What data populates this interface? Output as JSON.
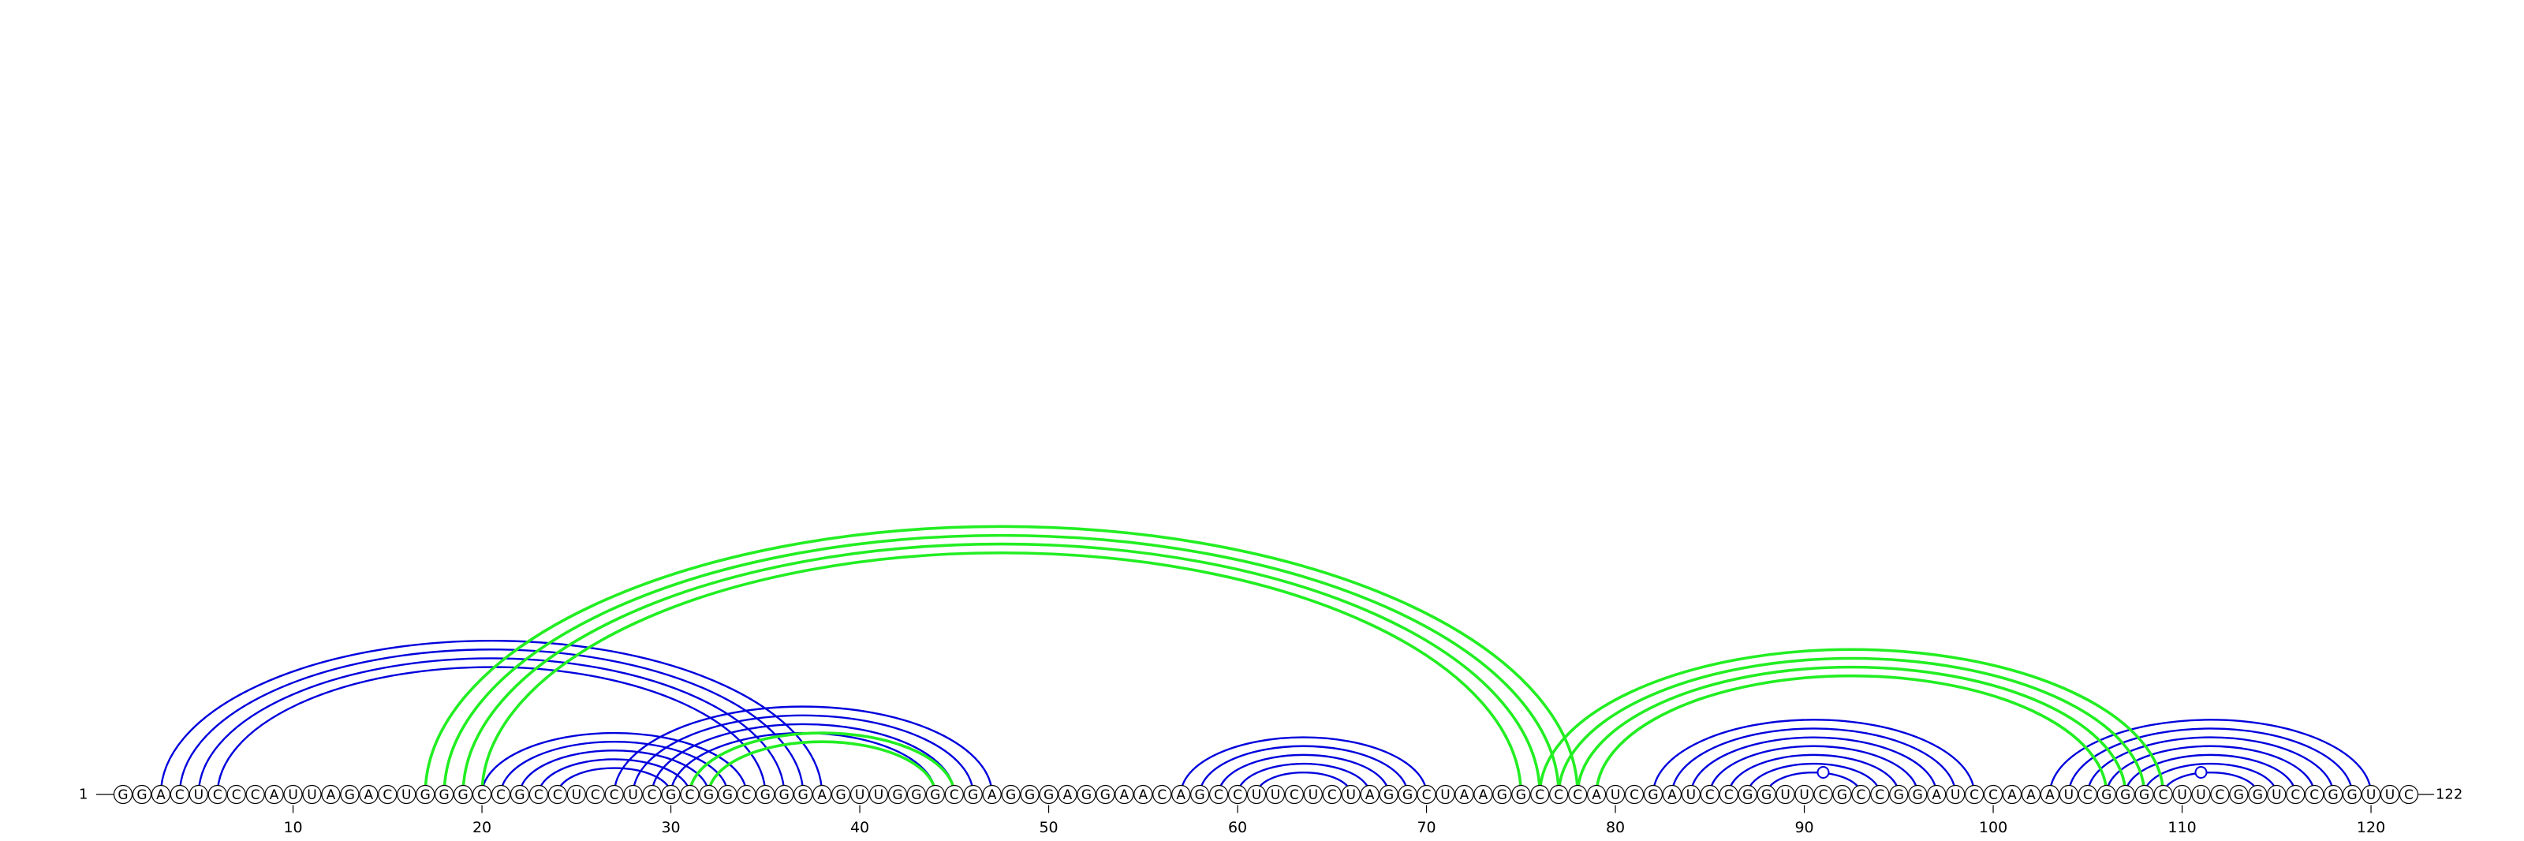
{
  "sequence": "GGACUCCCAUUAGACUGGGCCGCCUCCUCGCGGCGGGAGUUGGGCGAGGGAGGAACAGCCUUCUCUAGGCUAAGGCCCAUCGAUCCGGUUCGCCGGAUCCAAAUCGGGCUUCGGUCCGGUUC",
  "start_label": "1",
  "end_label": "122",
  "tick_labels": [
    "10",
    "20",
    "30",
    "40",
    "50",
    "60",
    "70",
    "80",
    "90",
    "100",
    "110",
    "120"
  ],
  "colors": {
    "structure_a": "#0000dd",
    "structure_b": "#22ee22",
    "text": "#000000"
  },
  "chart_data": {
    "type": "arc-diagram",
    "sequence_length": 122,
    "xlim": [
      1,
      122
    ],
    "ticks": [
      10,
      20,
      30,
      40,
      50,
      60,
      70,
      80,
      90,
      100,
      110,
      120
    ],
    "structures": [
      {
        "color": "#0000dd",
        "pairs": [
          [
            3,
            38
          ],
          [
            4,
            37
          ],
          [
            5,
            36
          ],
          [
            6,
            35
          ],
          [
            20,
            34
          ],
          [
            21,
            33
          ],
          [
            22,
            32
          ],
          [
            23,
            31
          ],
          [
            24,
            30
          ],
          [
            27,
            47
          ],
          [
            28,
            46
          ],
          [
            29,
            45
          ],
          [
            30,
            44
          ],
          [
            57,
            70
          ],
          [
            58,
            69
          ],
          [
            59,
            68
          ],
          [
            60,
            67
          ],
          [
            61,
            66
          ],
          [
            82,
            99
          ],
          [
            83,
            98
          ],
          [
            84,
            97
          ],
          [
            85,
            96
          ],
          [
            86,
            95
          ],
          [
            87,
            94
          ],
          [
            88,
            93
          ],
          [
            103,
            120
          ],
          [
            104,
            119
          ],
          [
            105,
            118
          ],
          [
            106,
            117
          ],
          [
            107,
            116
          ],
          [
            108,
            115
          ],
          [
            109,
            114
          ]
        ]
      },
      {
        "color": "#22ee22",
        "pairs": [
          [
            17,
            78
          ],
          [
            18,
            77
          ],
          [
            19,
            76
          ],
          [
            20,
            75
          ],
          [
            31,
            45
          ],
          [
            32,
            44
          ],
          [
            76,
            109
          ],
          [
            77,
            108
          ],
          [
            78,
            107
          ],
          [
            79,
            106
          ]
        ]
      }
    ],
    "loop_markers": [
      91,
      111
    ]
  }
}
